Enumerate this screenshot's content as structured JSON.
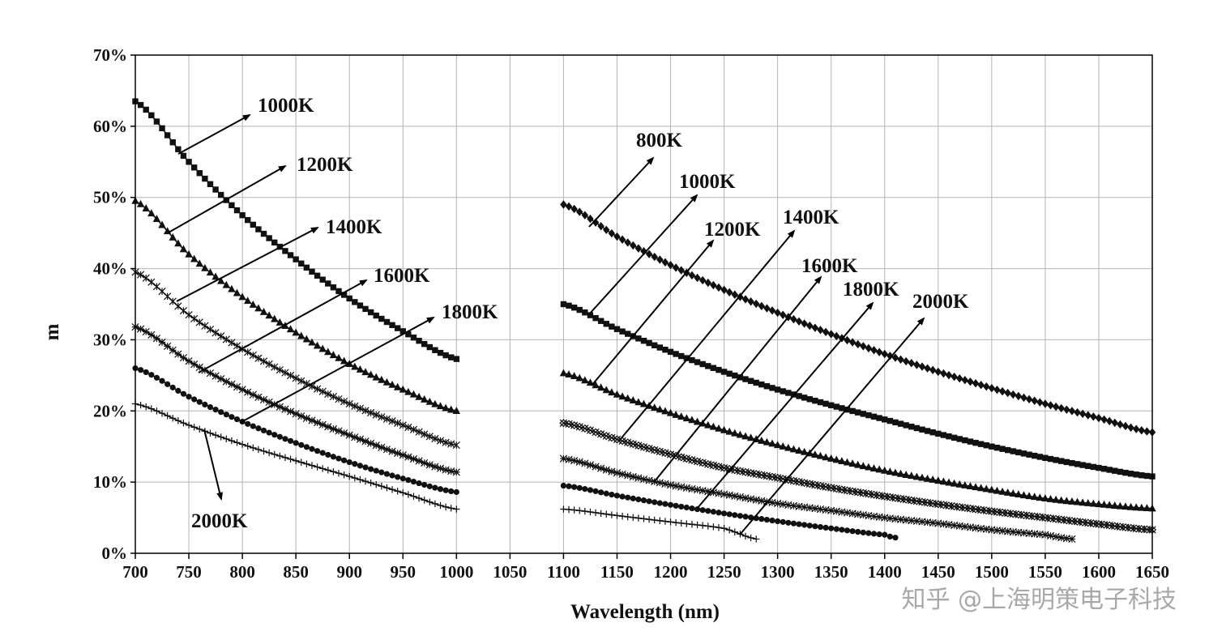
{
  "chart_data": {
    "type": "line",
    "title": "",
    "xlabel": "Wavelength (nm)",
    "ylabel": "m",
    "xlim": [
      700,
      1650
    ],
    "ylim": [
      0,
      70
    ],
    "x_ticks": [
      "700",
      "750",
      "800",
      "850",
      "900",
      "950",
      "1000",
      "1050",
      "1100",
      "1150",
      "1200",
      "1250",
      "1300",
      "1350",
      "1400",
      "1450",
      "1500",
      "1550",
      "1600",
      "1650"
    ],
    "y_ticks": [
      "0%",
      "10%",
      "20%",
      "30%",
      "40%",
      "50%",
      "60%",
      "70%"
    ],
    "grid": true,
    "legend": "none (inline arrow annotations)",
    "series": [
      {
        "name": "1000K",
        "group": "left",
        "marker": "square",
        "x": [
          700,
          750,
          800,
          850,
          900,
          950,
          1000
        ],
        "y": [
          63.5,
          55,
          47.5,
          41.3,
          35.8,
          31.2,
          27.3
        ]
      },
      {
        "name": "1200K",
        "group": "left",
        "marker": "triangle",
        "x": [
          700,
          750,
          800,
          850,
          900,
          950,
          1000
        ],
        "y": [
          49.5,
          42,
          36,
          31,
          26.6,
          23,
          20
        ]
      },
      {
        "name": "1400K",
        "group": "left",
        "marker": "cross-bar",
        "x": [
          700,
          750,
          800,
          850,
          900,
          950,
          1000
        ],
        "y": [
          39.5,
          33.5,
          28.7,
          24.6,
          21,
          18,
          15.2
        ]
      },
      {
        "name": "1600K",
        "group": "left",
        "marker": "asterisk",
        "x": [
          700,
          750,
          800,
          850,
          900,
          950,
          1000
        ],
        "y": [
          31.8,
          27,
          23,
          19.6,
          16.6,
          13.8,
          11.4
        ]
      },
      {
        "name": "1800K",
        "group": "left",
        "marker": "circle",
        "x": [
          700,
          750,
          800,
          850,
          900,
          950,
          1000
        ],
        "y": [
          26,
          22,
          18.5,
          15.5,
          12.8,
          10.5,
          8.6
        ]
      },
      {
        "name": "2000K",
        "group": "left",
        "marker": "plus",
        "x": [
          700,
          750,
          800,
          850,
          900,
          950,
          1000
        ],
        "y": [
          21,
          18,
          15.3,
          13,
          10.8,
          8.5,
          6.2
        ]
      },
      {
        "name": "800K",
        "group": "right",
        "marker": "diamond",
        "x": [
          1100,
          1150,
          1200,
          1250,
          1300,
          1350,
          1400,
          1450,
          1500,
          1550,
          1600,
          1650
        ],
        "y": [
          49,
          44.5,
          40.5,
          37,
          33.8,
          30.8,
          28,
          25.5,
          23.2,
          21,
          19,
          17
        ]
      },
      {
        "name": "1000K",
        "group": "right",
        "marker": "square",
        "x": [
          1100,
          1150,
          1200,
          1250,
          1300,
          1350,
          1400,
          1450,
          1500,
          1550,
          1600,
          1650
        ],
        "y": [
          35,
          31.5,
          28.3,
          25.5,
          23,
          20.8,
          18.8,
          16.8,
          15,
          13.4,
          12,
          10.8
        ]
      },
      {
        "name": "1200K",
        "group": "right",
        "marker": "triangle",
        "x": [
          1100,
          1150,
          1200,
          1250,
          1300,
          1350,
          1400,
          1450,
          1500,
          1550,
          1600,
          1650
        ],
        "y": [
          25.3,
          22.3,
          19.7,
          17.3,
          15.2,
          13.3,
          11.6,
          10.2,
          8.9,
          7.7,
          6.9,
          6.3
        ]
      },
      {
        "name": "1400K",
        "group": "right",
        "marker": "x-diamond",
        "x": [
          1100,
          1150,
          1200,
          1250,
          1300,
          1350,
          1400,
          1450,
          1500,
          1550,
          1600,
          1650
        ],
        "y": [
          18.3,
          16,
          13.9,
          12,
          10.6,
          9.2,
          8,
          6.9,
          5.9,
          5,
          4.1,
          3.3
        ]
      },
      {
        "name": "1600K",
        "group": "right",
        "marker": "asterisk",
        "x": [
          1100,
          1150,
          1200,
          1250,
          1300,
          1350,
          1400,
          1450,
          1500,
          1550,
          1575
        ],
        "y": [
          13.3,
          11.3,
          9.6,
          8.3,
          7,
          6,
          5,
          4.2,
          3.3,
          2.6,
          2.0
        ]
      },
      {
        "name": "1800K",
        "group": "right",
        "marker": "circle",
        "x": [
          1100,
          1150,
          1200,
          1250,
          1300,
          1350,
          1400,
          1410
        ],
        "y": [
          9.5,
          8.1,
          6.8,
          5.6,
          4.5,
          3.5,
          2.6,
          2.2
        ]
      },
      {
        "name": "2000K",
        "group": "right",
        "marker": "plus",
        "x": [
          1100,
          1150,
          1200,
          1250,
          1280
        ],
        "y": [
          6.2,
          5.3,
          4.4,
          3.5,
          2.0
        ]
      }
    ]
  },
  "watermark": "知乎 @上海明策电子科技"
}
